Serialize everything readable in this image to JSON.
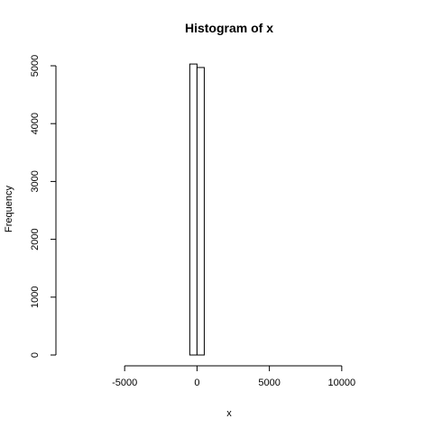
{
  "chart_data": {
    "type": "bar",
    "title": "Histogram of x",
    "xlabel": "x",
    "ylabel": "Frequency",
    "bins": [
      {
        "start": -500,
        "end": 0,
        "count": 5030
      },
      {
        "start": 0,
        "end": 500,
        "count": 4970
      }
    ],
    "xlim": [
      -9000,
      13500
    ],
    "ylim": [
      0,
      5000
    ],
    "xticks": [
      -5000,
      0,
      5000,
      10000
    ],
    "xtick_labels": [
      "-5000",
      "0",
      "5000",
      "10000"
    ],
    "yticks": [
      0,
      1000,
      2000,
      3000,
      4000,
      5000
    ],
    "ytick_labels": [
      "0",
      "1000",
      "2000",
      "3000",
      "4000",
      "5000"
    ],
    "grid": false,
    "bar_fill": "#ffffff",
    "bar_stroke": "#000000"
  }
}
